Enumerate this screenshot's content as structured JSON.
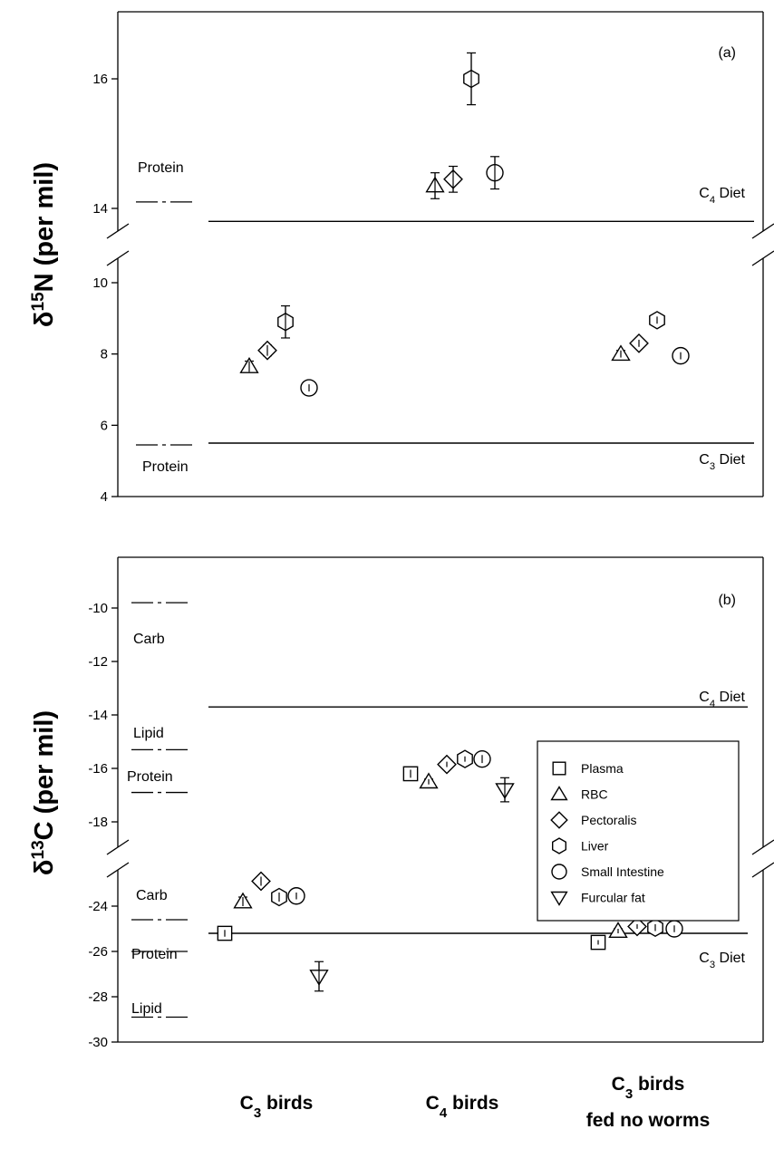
{
  "chart_data": [
    {
      "type": "scatter",
      "panel_label": "(a)",
      "ylabel": {
        "symbol": "δ",
        "sup": "15",
        "main": "N (per mil)"
      },
      "yticks": [
        4,
        6,
        8,
        10,
        14,
        16
      ],
      "ylim_lower": [
        4,
        10.5
      ],
      "ylim_upper": [
        13.2,
        17.1
      ],
      "axis_break": "between 10 and 14",
      "lines": [
        {
          "label_base": "C",
          "label_sub": "4",
          "label_rest": " Diet",
          "value": 13.8,
          "style": "solid"
        },
        {
          "label_base": "C",
          "label_sub": "3",
          "label_rest": " Diet",
          "value": 5.5,
          "style": "solid"
        }
      ],
      "reference_marks": [
        {
          "label": "Protein",
          "value": 14.1,
          "style": "dashdot"
        },
        {
          "label": "Protein",
          "value": 5.45,
          "style": "dashdot"
        }
      ],
      "series": [
        {
          "name": "RBC",
          "marker": "triangle-up",
          "points": [
            {
              "group": "C3 birds",
              "y": 7.65,
              "err": 0.15
            },
            {
              "group": "C4 birds",
              "y": 14.35,
              "err": 0.2
            },
            {
              "group": "C3 birds fed no worms",
              "y": 8.0,
              "err": 0.1
            }
          ]
        },
        {
          "name": "Pectoralis",
          "marker": "diamond",
          "points": [
            {
              "group": "C3 birds",
              "y": 8.1,
              "err": 0.15
            },
            {
              "group": "C4 birds",
              "y": 14.45,
              "err": 0.2
            },
            {
              "group": "C3 birds fed no worms",
              "y": 8.3,
              "err": 0.1
            }
          ]
        },
        {
          "name": "Liver",
          "marker": "hexagon",
          "points": [
            {
              "group": "C3 birds",
              "y": 8.9,
              "err": 0.45
            },
            {
              "group": "C4 birds",
              "y": 16.0,
              "err": 0.4
            },
            {
              "group": "C3 birds fed no worms",
              "y": 8.95,
              "err": 0.1
            }
          ]
        },
        {
          "name": "Small Intestine",
          "marker": "circle",
          "points": [
            {
              "group": "C3 birds",
              "y": 7.05,
              "err": 0.1
            },
            {
              "group": "C4 birds",
              "y": 14.55,
              "err": 0.25
            },
            {
              "group": "C3 birds fed no worms",
              "y": 7.95,
              "err": 0.1
            }
          ]
        }
      ]
    },
    {
      "type": "scatter",
      "panel_label": "(b)",
      "ylabel": {
        "symbol": "δ",
        "sup": "13",
        "main": "C (per mil)"
      },
      "yticks": [
        -30,
        -28,
        -26,
        -24,
        -18,
        -16,
        -14,
        -12,
        -10
      ],
      "ylim_lower": [
        -30,
        -22.8
      ],
      "ylim_upper": [
        -19.0,
        -9.3
      ],
      "axis_break": "between -24 and -18",
      "lines": [
        {
          "label_base": "C",
          "label_sub": "4",
          "label_rest": " Diet",
          "value": -13.7,
          "style": "solid"
        },
        {
          "label_base": "C",
          "label_sub": "3",
          "label_rest": " Diet",
          "value": -25.2,
          "style": "solid"
        }
      ],
      "reference_marks": [
        {
          "label": "Carb",
          "value": -9.8,
          "style": "dashdot"
        },
        {
          "label": "Lipid",
          "value": -15.3,
          "style": "dashdot"
        },
        {
          "label": "Protein",
          "value": -16.9,
          "style": "dashdot"
        },
        {
          "label": "Carb",
          "value": -24.6,
          "style": "dashdot"
        },
        {
          "label": "Protein",
          "value": -26.0,
          "style": "dashdot"
        },
        {
          "label": "Lipid",
          "value": -28.9,
          "style": "dashdot"
        }
      ],
      "series": [
        {
          "name": "Plasma",
          "marker": "square",
          "points": [
            {
              "group": "C3 birds",
              "y": -25.2,
              "err": 0.15
            },
            {
              "group": "C4 birds",
              "y": -16.2,
              "err": 0.15
            },
            {
              "group": "C3 birds fed no worms",
              "y": -25.6,
              "err": 0.1
            }
          ]
        },
        {
          "name": "RBC",
          "marker": "triangle-up",
          "points": [
            {
              "group": "C3 birds",
              "y": -23.8,
              "err": 0.2
            },
            {
              "group": "C4 birds",
              "y": -16.5,
              "err": 0.1
            },
            {
              "group": "C3 birds fed no worms",
              "y": -25.1,
              "err": 0.1
            }
          ]
        },
        {
          "name": "Pectoralis",
          "marker": "diamond",
          "points": [
            {
              "group": "C3 birds",
              "y": -22.9,
              "err": 0.2
            },
            {
              "group": "C4 birds",
              "y": -15.85,
              "err": 0.1
            },
            {
              "group": "C3 birds fed no worms",
              "y": -24.9,
              "err": 0.1
            }
          ]
        },
        {
          "name": "Liver",
          "marker": "hexagon",
          "points": [
            {
              "group": "C3 birds",
              "y": -23.6,
              "err": 0.2
            },
            {
              "group": "C4 birds",
              "y": -15.65,
              "err": 0.1
            },
            {
              "group": "C3 birds fed no worms",
              "y": -24.95,
              "err": 0.15
            }
          ]
        },
        {
          "name": "Small Intestine",
          "marker": "circle",
          "points": [
            {
              "group": "C3 birds",
              "y": -23.55,
              "err": 0.15
            },
            {
              "group": "C4 birds",
              "y": -15.65,
              "err": 0.15
            },
            {
              "group": "C3 birds fed no worms",
              "y": -25.0,
              "err": 0.15
            }
          ]
        },
        {
          "name": "Furcular fat",
          "marker": "triangle-down",
          "points": [
            {
              "group": "C3 birds",
              "y": -27.1,
              "err": 0.65
            },
            {
              "group": "C4 birds",
              "y": -16.8,
              "err": 0.45
            }
          ]
        }
      ],
      "legend": {
        "placement": "right",
        "entries": [
          {
            "name": "Plasma",
            "marker": "square"
          },
          {
            "name": "RBC",
            "marker": "triangle-up"
          },
          {
            "name": "Pectoralis",
            "marker": "diamond"
          },
          {
            "name": "Liver",
            "marker": "hexagon"
          },
          {
            "name": "Small Intestine",
            "marker": "circle"
          },
          {
            "name": "Furcular fat",
            "marker": "triangle-down"
          }
        ]
      }
    }
  ],
  "x_groups": [
    {
      "id": "C3 birds",
      "line1_base": "C",
      "line1_sub": "3",
      "line1_rest": " birds",
      "line2": ""
    },
    {
      "id": "C4 birds",
      "line1_base": "C",
      "line1_sub": "4",
      "line1_rest": " birds",
      "line2": ""
    },
    {
      "id": "C3 birds fed no worms",
      "line1_base": "C",
      "line1_sub": "3",
      "line1_rest": " birds",
      "line2": "fed no worms"
    }
  ]
}
